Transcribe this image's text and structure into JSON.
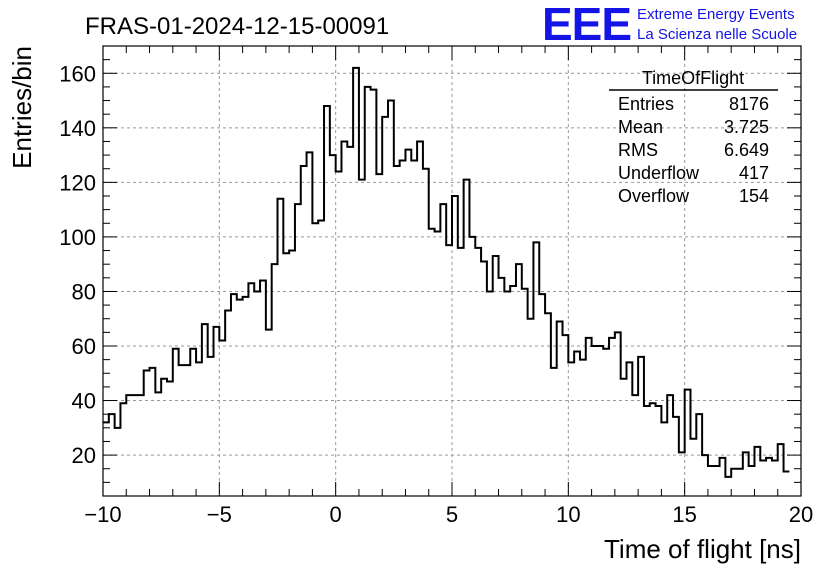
{
  "title": "FRAS-01-2024-12-15-00091",
  "logo": {
    "text": "EEE",
    "line1": "Extreme Energy Events",
    "line2": "La Scienza nelle Scuole",
    "color": "#1414e6"
  },
  "stats": {
    "name": "TimeOfFlight",
    "rows": [
      {
        "label": "Entries",
        "value": "8176"
      },
      {
        "label": "Mean",
        "value": "3.725"
      },
      {
        "label": "RMS",
        "value": "6.649"
      },
      {
        "label": "Underflow",
        "value": "417"
      },
      {
        "label": "Overflow",
        "value": "154"
      }
    ]
  },
  "chart_data": {
    "type": "bar",
    "subtype": "histogram-step",
    "xlabel": "Time of flight [ns]",
    "ylabel": "Entries/bin",
    "xlim": [
      -10,
      20
    ],
    "ylim": [
      5,
      170
    ],
    "xticks": [
      -10,
      -5,
      0,
      5,
      10,
      15,
      20
    ],
    "yticks": [
      20,
      40,
      60,
      80,
      100,
      120,
      140,
      160
    ],
    "grid": true,
    "line_color": "#000000",
    "bin_width": 0.25,
    "x_start": -10,
    "values": [
      32,
      35,
      30,
      39,
      42,
      42,
      42,
      51,
      52,
      43,
      48,
      47,
      59,
      53,
      53,
      59,
      54,
      68,
      56,
      67,
      62,
      73,
      79,
      77,
      78,
      83,
      80,
      84,
      66,
      90,
      114,
      94,
      95,
      112,
      126,
      131,
      105,
      106,
      148,
      130,
      124,
      135,
      133,
      162,
      121,
      155,
      154,
      123,
      144,
      150,
      126,
      128,
      132,
      128,
      135,
      125,
      103,
      102,
      112,
      97,
      115,
      96,
      121,
      100,
      96,
      91,
      80,
      93,
      85,
      80,
      82,
      90,
      81,
      70,
      98,
      79,
      72,
      52,
      69,
      64,
      54,
      58,
      55,
      63,
      60,
      60,
      59,
      63,
      65,
      48,
      54,
      42,
      56,
      38,
      39,
      38,
      32,
      42,
      34,
      21,
      44,
      26,
      35,
      20,
      16,
      16,
      19,
      12,
      15,
      15,
      21,
      16,
      23,
      18,
      19,
      18,
      24,
      14
    ]
  }
}
